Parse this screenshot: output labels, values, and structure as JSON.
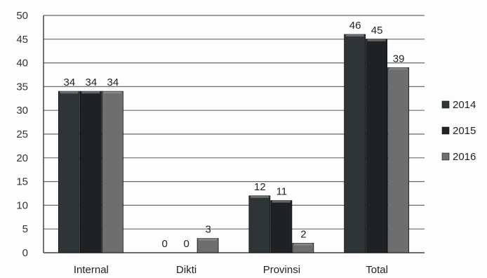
{
  "chart_data": {
    "type": "bar",
    "categories": [
      "Internal",
      "Dikti",
      "Provinsi",
      "Total"
    ],
    "series": [
      {
        "name": "2014",
        "values": [
          34,
          0,
          12,
          46
        ],
        "color": "#2f3436"
      },
      {
        "name": "2015",
        "values": [
          34,
          0,
          11,
          45
        ],
        "color": "#1f2224"
      },
      {
        "name": "2016",
        "values": [
          34,
          3,
          2,
          39
        ],
        "color": "#6e6e6e"
      }
    ],
    "ylim": [
      0,
      50
    ],
    "yticks": [
      "0",
      "5",
      "10",
      "15",
      "20",
      "25",
      "30",
      "35",
      "40",
      "45",
      "50"
    ],
    "grid": true,
    "legend": "right",
    "title": "",
    "xlabel": "",
    "ylabel": ""
  }
}
